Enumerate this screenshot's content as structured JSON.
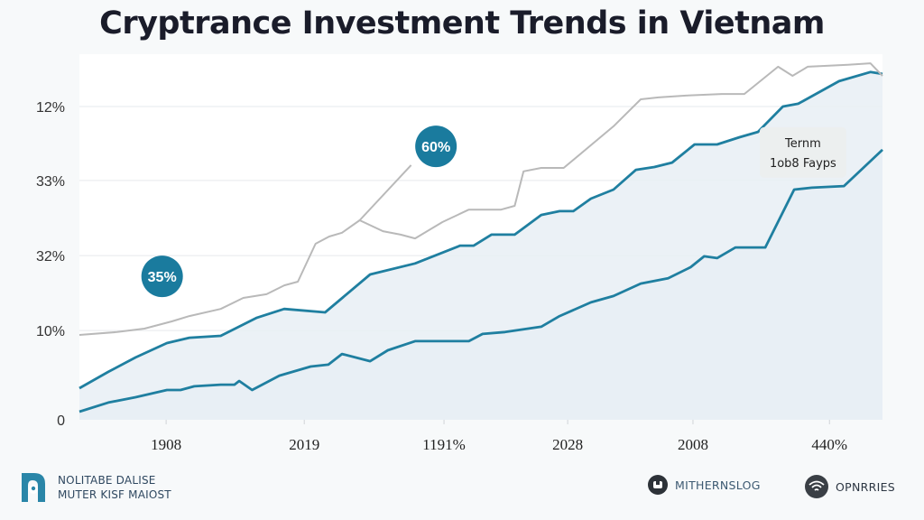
{
  "chart_data": {
    "type": "area",
    "title": "Cryptrance Investment Trends in Vietnam",
    "xlabel": "",
    "ylabel": "",
    "grid": true,
    "y_scale_note": "values on normalized 0-100 level scale; 100 = top gridline",
    "ylim": [
      0,
      100
    ],
    "xlim": [
      0,
      100
    ],
    "y_ticks": [
      {
        "label": "0",
        "level": 0
      },
      {
        "label": "10%",
        "level": 28.5
      },
      {
        "label": "32%",
        "level": 52.4
      },
      {
        "label": "33%",
        "level": 76.4
      },
      {
        "label": "12%",
        "level": 100
      }
    ],
    "x_ticks": [
      {
        "label": "1908",
        "pos": 10.8
      },
      {
        "label": "2019",
        "pos": 28.0
      },
      {
        "label": "1191%",
        "pos": 45.4
      },
      {
        "label": "2028",
        "pos": 60.8
      },
      {
        "label": "2008",
        "pos": 76.4
      },
      {
        "label": "440%",
        "pos": 93.4
      }
    ],
    "series": [
      {
        "name": "upper",
        "color": "#1f7fa0",
        "filled": true,
        "points": [
          [
            0,
            10.1
          ],
          [
            3.6,
            15.3
          ],
          [
            7,
            19.9
          ],
          [
            10.9,
            24.5
          ],
          [
            13.7,
            26.2
          ],
          [
            17.6,
            26.8
          ],
          [
            22.1,
            32.6
          ],
          [
            25.5,
            35.4
          ],
          [
            30.6,
            34.3
          ],
          [
            36.2,
            46.4
          ],
          [
            41.8,
            49.9
          ],
          [
            47.4,
            55.6
          ],
          [
            49.1,
            55.6
          ],
          [
            51.3,
            59.1
          ],
          [
            54.2,
            59.1
          ],
          [
            57.5,
            65.4
          ],
          [
            59.8,
            66.6
          ],
          [
            61.5,
            66.6
          ],
          [
            63.7,
            70.6
          ],
          [
            66.5,
            73.5
          ],
          [
            69.3,
            79.8
          ],
          [
            71.6,
            80.7
          ],
          [
            73.8,
            82.1
          ],
          [
            76.6,
            87.9
          ],
          [
            79.4,
            87.9
          ],
          [
            82.2,
            90.2
          ],
          [
            84.5,
            91.9
          ],
          [
            87.6,
            100
          ],
          [
            89.5,
            100.9
          ],
          [
            94.6,
            108.1
          ],
          [
            98.5,
            111.0
          ],
          [
            100,
            110.4
          ]
        ]
      },
      {
        "name": "lower",
        "color": "#1f7fa0",
        "filled": true,
        "points": [
          [
            0,
            2.6
          ],
          [
            3.6,
            5.5
          ],
          [
            7,
            7.2
          ],
          [
            10.9,
            9.5
          ],
          [
            12.6,
            9.5
          ],
          [
            14.3,
            10.7
          ],
          [
            17.6,
            11.2
          ],
          [
            19.3,
            11.2
          ],
          [
            19.9,
            12.4
          ],
          [
            21.5,
            9.5
          ],
          [
            24.9,
            14.1
          ],
          [
            28.8,
            17.0
          ],
          [
            31,
            17.6
          ],
          [
            32.7,
            21.0
          ],
          [
            36.2,
            18.7
          ],
          [
            38.4,
            22.2
          ],
          [
            41.8,
            25.1
          ],
          [
            48.5,
            25.1
          ],
          [
            50.2,
            27.4
          ],
          [
            53,
            28.0
          ],
          [
            57.5,
            29.7
          ],
          [
            59.8,
            33.1
          ],
          [
            63.7,
            37.5
          ],
          [
            66.5,
            39.5
          ],
          [
            69.9,
            43.5
          ],
          [
            73.3,
            45.2
          ],
          [
            76.1,
            48.7
          ],
          [
            77.8,
            52.2
          ],
          [
            79.4,
            51.6
          ],
          [
            81.7,
            55.0
          ],
          [
            85.4,
            55.0
          ],
          [
            89,
            73.5
          ],
          [
            91.2,
            74.1
          ],
          [
            95.2,
            74.6
          ],
          [
            100,
            86.2
          ]
        ]
      },
      {
        "name": "gray",
        "color": "#b9b9b9",
        "filled": false,
        "points": [
          [
            0,
            27.1
          ],
          [
            4.7,
            28.0
          ],
          [
            8.1,
            29.1
          ],
          [
            11.5,
            31.4
          ],
          [
            13.7,
            33.1
          ],
          [
            17.6,
            35.4
          ],
          [
            20.4,
            38.9
          ],
          [
            23.3,
            40.1
          ],
          [
            25.5,
            42.9
          ],
          [
            27.2,
            44.1
          ],
          [
            29.4,
            56.2
          ],
          [
            31.1,
            58.5
          ],
          [
            32.7,
            59.7
          ],
          [
            34.9,
            63.7
          ],
          [
            37.8,
            60.2
          ],
          [
            40,
            59.1
          ],
          [
            41.8,
            57.9
          ],
          [
            45.2,
            63.1
          ],
          [
            48.5,
            67.1
          ],
          [
            52.5,
            67.1
          ],
          [
            54.2,
            68.3
          ],
          [
            55.3,
            79.3
          ],
          [
            57.5,
            80.4
          ],
          [
            60.3,
            80.4
          ],
          [
            66.5,
            93.7
          ],
          [
            69.9,
            102.3
          ],
          [
            72.1,
            102.9
          ],
          [
            75.5,
            103.5
          ],
          [
            80,
            104.0
          ],
          [
            82.8,
            104.0
          ],
          [
            87,
            112.7
          ],
          [
            88.8,
            109.8
          ],
          [
            90.7,
            112.7
          ],
          [
            95.7,
            113.3
          ],
          [
            98.5,
            113.8
          ],
          [
            100,
            109.8
          ]
        ],
        "branch": [
          [
            34.9,
            63.7
          ],
          [
            41.3,
            81.3
          ]
        ]
      }
    ],
    "annotations": [
      {
        "type": "badge",
        "text": "35%",
        "x": 10.3,
        "level": 45.8
      },
      {
        "type": "badge",
        "text": "60%",
        "x": 44.4,
        "level": 87.3
      },
      {
        "type": "note",
        "lines": [
          "Ternm",
          "1ob8 Fayps"
        ],
        "x": 90.1,
        "level": 86.5
      }
    ]
  },
  "footer": {
    "brand_line1": "NOLITABE DALISE",
    "brand_line2": "MUTER KISF MAIOST",
    "item1_label": "MITHERNSLOG",
    "item1_icon": "square-logo-icon",
    "item2_label": "OPNRRIES",
    "item2_icon": "wifi-icon"
  }
}
